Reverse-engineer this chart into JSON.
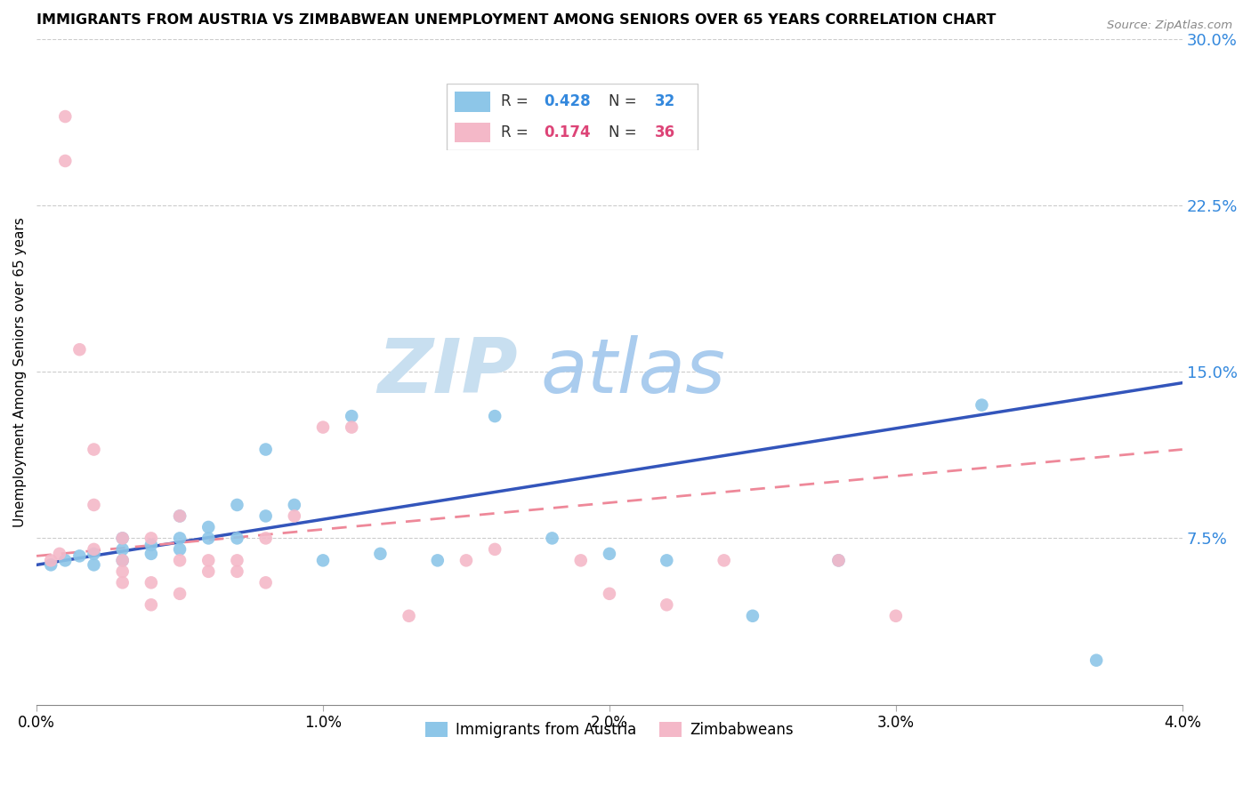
{
  "title": "IMMIGRANTS FROM AUSTRIA VS ZIMBABWEAN UNEMPLOYMENT AMONG SENIORS OVER 65 YEARS CORRELATION CHART",
  "source": "Source: ZipAtlas.com",
  "ylabel": "Unemployment Among Seniors over 65 years",
  "x_min": 0.0,
  "x_max": 0.04,
  "y_min": 0.0,
  "y_max": 0.3,
  "yticks": [
    0.0,
    0.075,
    0.15,
    0.225,
    0.3
  ],
  "ytick_labels": [
    "",
    "7.5%",
    "15.0%",
    "22.5%",
    "30.0%"
  ],
  "xticks": [
    0.0,
    0.01,
    0.02,
    0.03,
    0.04
  ],
  "xtick_labels": [
    "0.0%",
    "1.0%",
    "2.0%",
    "3.0%",
    "4.0%"
  ],
  "legend_r_blue": "0.428",
  "legend_n_blue": "32",
  "legend_r_pink": "0.174",
  "legend_n_pink": "36",
  "color_blue": "#8dc6e8",
  "color_pink": "#f4b8c8",
  "color_blue_text": "#3388dd",
  "color_pink_text": "#dd4477",
  "color_line_blue": "#3355bb",
  "color_line_pink": "#ee8899",
  "watermark_zip": "ZIP",
  "watermark_atlas": "atlas",
  "watermark_color_zip": "#c8dff0",
  "watermark_color_atlas": "#aaccee",
  "blue_x": [
    0.0005,
    0.001,
    0.0015,
    0.002,
    0.002,
    0.003,
    0.003,
    0.003,
    0.004,
    0.004,
    0.005,
    0.005,
    0.005,
    0.006,
    0.006,
    0.007,
    0.007,
    0.008,
    0.008,
    0.009,
    0.01,
    0.011,
    0.012,
    0.014,
    0.016,
    0.018,
    0.02,
    0.022,
    0.025,
    0.028,
    0.033,
    0.037
  ],
  "blue_y": [
    0.063,
    0.065,
    0.067,
    0.068,
    0.063,
    0.07,
    0.065,
    0.075,
    0.068,
    0.072,
    0.07,
    0.075,
    0.085,
    0.075,
    0.08,
    0.09,
    0.075,
    0.085,
    0.115,
    0.09,
    0.065,
    0.13,
    0.068,
    0.065,
    0.13,
    0.075,
    0.068,
    0.065,
    0.04,
    0.065,
    0.135,
    0.02
  ],
  "pink_x": [
    0.0005,
    0.0008,
    0.001,
    0.001,
    0.0015,
    0.002,
    0.002,
    0.002,
    0.003,
    0.003,
    0.003,
    0.003,
    0.004,
    0.004,
    0.004,
    0.005,
    0.005,
    0.005,
    0.006,
    0.006,
    0.007,
    0.007,
    0.008,
    0.008,
    0.009,
    0.01,
    0.011,
    0.013,
    0.015,
    0.016,
    0.019,
    0.02,
    0.022,
    0.024,
    0.028,
    0.03
  ],
  "pink_y": [
    0.065,
    0.068,
    0.265,
    0.245,
    0.16,
    0.115,
    0.09,
    0.07,
    0.065,
    0.075,
    0.06,
    0.055,
    0.075,
    0.055,
    0.045,
    0.085,
    0.065,
    0.05,
    0.065,
    0.06,
    0.065,
    0.06,
    0.075,
    0.055,
    0.085,
    0.125,
    0.125,
    0.04,
    0.065,
    0.07,
    0.065,
    0.05,
    0.045,
    0.065,
    0.065,
    0.04
  ]
}
